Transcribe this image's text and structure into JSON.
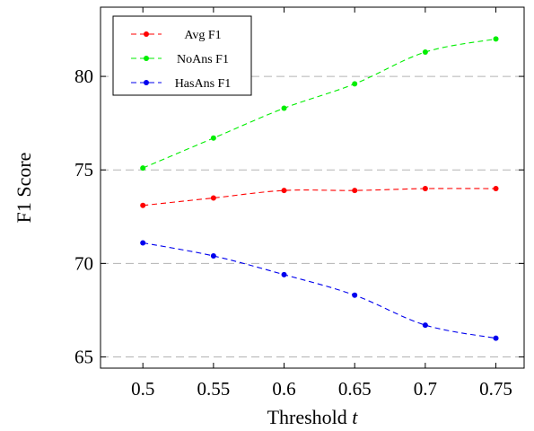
{
  "chart_data": {
    "type": "line",
    "xlabel": "Threshold",
    "xlabel_var": "t",
    "ylabel": "F1 Score",
    "x": [
      0.5,
      0.55,
      0.6,
      0.65,
      0.7,
      0.75
    ],
    "x_tick_labels": [
      "0.5",
      "0.55",
      "0.6",
      "0.65",
      "0.7",
      "0.75"
    ],
    "xlim": [
      0.47,
      0.77
    ],
    "y_ticks": [
      65,
      70,
      75,
      80
    ],
    "y_tick_labels": [
      "65",
      "70",
      "75",
      "80"
    ],
    "ylim": [
      64.4,
      83.7
    ],
    "grid": "horizontal dashed",
    "legend_position": "top-left",
    "series": [
      {
        "name": "Avg F1",
        "color": "#ff0000",
        "values": [
          73.1,
          73.5,
          73.9,
          73.9,
          74.0,
          74.0
        ]
      },
      {
        "name": "NoAns F1",
        "color": "#00ee00",
        "values": [
          75.1,
          76.7,
          78.3,
          79.6,
          81.3,
          82.0
        ]
      },
      {
        "name": "HasAns F1",
        "color": "#0000ee",
        "values": [
          71.1,
          70.4,
          69.4,
          68.3,
          66.7,
          66.0
        ]
      }
    ]
  }
}
